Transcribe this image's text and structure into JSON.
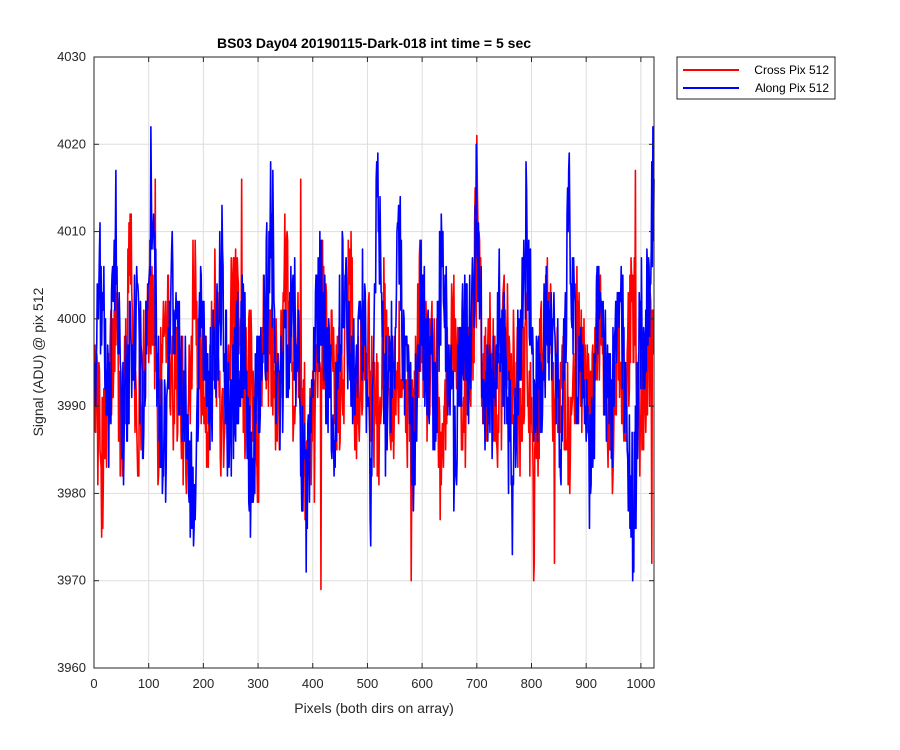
{
  "chart_data": {
    "type": "line",
    "title": "BS03 Day04 20190115-Dark-018 int time = 5 sec",
    "xlabel": "Pixels (both dirs on array)",
    "ylabel": "Signal (ADU) @ pix 512",
    "xlim": [
      0,
      1024
    ],
    "ylim": [
      3960,
      4030
    ],
    "xticks": [
      0,
      100,
      200,
      300,
      400,
      500,
      600,
      700,
      800,
      900,
      1000
    ],
    "yticks": [
      3960,
      3970,
      3980,
      3990,
      4000,
      4010,
      4020,
      4030
    ],
    "grid": true,
    "legend_position": "outside-top-right",
    "series": [
      {
        "name": "Cross Pix 512",
        "color": "#ff0000",
        "values": [
          3996,
          3978,
          3991,
          4000,
          3982,
          4013,
          3985,
          3999,
          4003,
          3988,
          4007,
          3991,
          3994,
          3980,
          4010,
          3996,
          3989,
          4002,
          3985,
          3999,
          4005,
          3990,
          3994,
          3983,
          4001,
          3997,
          3988,
          4009,
          3992,
          3996,
          3976,
          3985,
          4004,
          3998,
          3989,
          3993,
          4011,
          3987,
          3999,
          3995,
          3984,
          4002,
          3991,
          3996,
          3990,
          3986,
          4006,
          3993,
          3999,
          3981,
          3995,
          4003,
          3988,
          3992,
          4016,
          3990,
          3997,
          3984,
          4001,
          3993,
          3987,
          3999,
          3974,
          3995,
          4004,
          3990,
          3996,
          3983,
          4000,
          3992,
          3989,
          4002,
          3994,
          3977,
          3998,
          3991,
          4005,
          3986,
          3995,
          3999
        ],
        "extremes": [
          {
            "x": 415,
            "y": 3969
          },
          {
            "x": 580,
            "y": 3970
          },
          {
            "x": 842,
            "y": 3972
          },
          {
            "x": 1020,
            "y": 3972
          },
          {
            "x": 270,
            "y": 4016
          },
          {
            "x": 378,
            "y": 4016
          },
          {
            "x": 112,
            "y": 4016
          },
          {
            "x": 990,
            "y": 4017
          }
        ]
      },
      {
        "name": "Along Pix 512",
        "color": "#0000ff",
        "values": [
          3995,
          4006,
          3989,
          4014,
          3984,
          3998,
          4002,
          3987,
          4019,
          3993,
          3981,
          4005,
          3996,
          3990,
          3972,
          4003,
          3988,
          3997,
          4008,
          3983,
          3994,
          4001,
          3978,
          3992,
          3999,
          4015,
          3986,
          3995,
          4004,
          3990,
          3971,
          3998,
          4005,
          3993,
          3985,
          4009,
          3996,
          3991,
          4002,
          3980,
          4021,
          3988,
          3997,
          4011,
          3993,
          3979,
          4003,
          3996,
          3989,
          4008,
          3994,
          3983,
          4000,
          3997,
          4015,
          3990,
          3986,
          4002,
          3995,
          3979,
          3998,
          4013,
          3992,
          3989,
          4005,
          3996,
          3984,
          4019,
          3991,
          3999,
          3977,
          4002,
          3995,
          3988,
          4006,
          3993,
          3971,
          3999,
          4002,
          4019
        ]
      }
    ]
  }
}
